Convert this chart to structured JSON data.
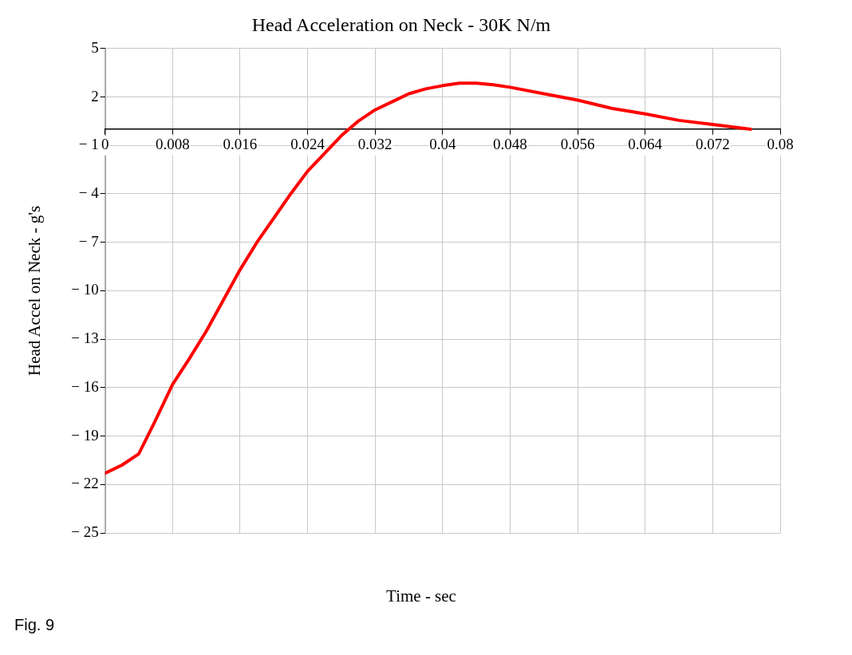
{
  "chart_data": {
    "type": "line",
    "title": "Head Acceleration on Neck - 30K N/m",
    "xlabel": "Time - sec",
    "ylabel": "Head Accel on Neck - g's",
    "annotations": [
      "Fig. 9"
    ],
    "x": [
      0,
      0.002,
      0.004,
      0.006,
      0.008,
      0.01,
      0.012,
      0.014,
      0.016,
      0.018,
      0.02,
      0.022,
      0.024,
      0.026,
      0.028,
      0.03,
      0.032,
      0.034,
      0.036,
      0.038,
      0.04,
      0.042,
      0.044,
      0.046,
      0.048,
      0.052,
      0.056,
      0.06,
      0.064,
      0.068,
      0.072,
      0.0765
    ],
    "series": [
      {
        "color": "#ff0000",
        "values": [
          -21.3,
          -20.8,
          -20.1,
          -18.0,
          -15.8,
          -14.2,
          -12.5,
          -10.6,
          -8.7,
          -7.0,
          -5.5,
          -4.0,
          -2.6,
          -1.5,
          -0.4,
          0.5,
          1.2,
          1.7,
          2.2,
          2.5,
          2.7,
          2.85,
          2.85,
          2.75,
          2.6,
          2.2,
          1.8,
          1.3,
          0.95,
          0.55,
          0.3,
          0.0
        ]
      }
    ],
    "xlim": [
      0,
      0.08
    ],
    "xticks": [
      0,
      0.008,
      0.016,
      0.024,
      0.032,
      0.04,
      0.048,
      0.056,
      0.064,
      0.072,
      0.08
    ],
    "ylim": [
      -25,
      5
    ],
    "yticks": [
      5,
      2,
      {
        "value": -1,
        "label": "− 1"
      },
      {
        "value": -4,
        "label": "− 4"
      },
      {
        "value": -7,
        "label": "− 7"
      },
      {
        "value": -10,
        "label": "− 10"
      },
      {
        "value": -13,
        "label": "− 13"
      },
      {
        "value": -16,
        "label": "− 16"
      },
      {
        "value": -19,
        "label": "− 19"
      },
      {
        "value": -22,
        "label": "− 22"
      },
      {
        "value": -25,
        "label": "− 25"
      }
    ],
    "grid": true,
    "legend": false,
    "marker": "none",
    "line_style": "solid"
  }
}
